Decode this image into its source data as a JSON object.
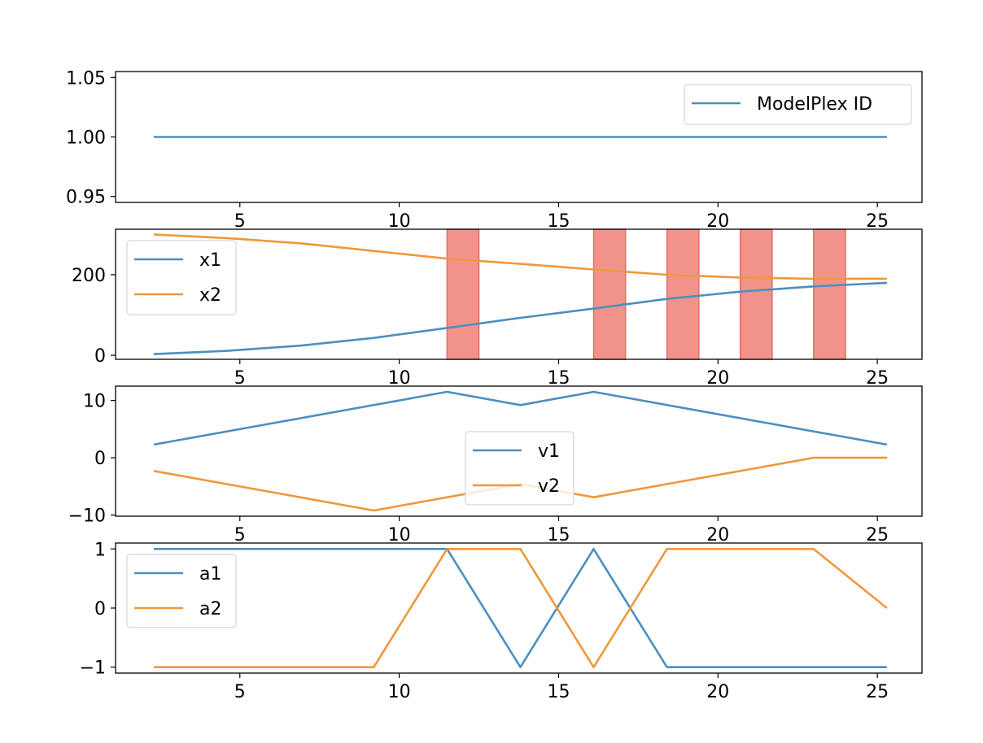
{
  "colors": {
    "series_1": "#4c8fc0",
    "series_2": "#f0973c",
    "highlight_fill": "#f1938b",
    "highlight_edge": "#e46d66",
    "axis": "#000000",
    "background": "#ffffff"
  },
  "chart_data": [
    {
      "type": "line",
      "x_ticks": [
        5,
        10,
        15,
        20,
        25
      ],
      "xlim": [
        1.1,
        26.4
      ],
      "ylim": [
        0.945,
        1.055
      ],
      "y_ticks": [
        0.95,
        1.0,
        1.05
      ],
      "y_tick_labels": [
        "0.95",
        "1.00",
        "1.05"
      ],
      "legend_position": "upper right",
      "series": [
        {
          "name": "ModelPlex ID",
          "color": "series_1",
          "x": [
            2.3,
            25.3
          ],
          "y": [
            1.0,
            1.0
          ]
        }
      ],
      "highlights": []
    },
    {
      "type": "line",
      "x_ticks": [
        5,
        10,
        15,
        20,
        25
      ],
      "xlim": [
        1.1,
        26.4
      ],
      "ylim": [
        -10,
        313
      ],
      "y_ticks": [
        0,
        200
      ],
      "y_tick_labels": [
        "0",
        "200"
      ],
      "legend_position": "upper left",
      "series": [
        {
          "name": "x1",
          "color": "series_1",
          "x": [
            2.3,
            4.6,
            6.9,
            9.2,
            11.5,
            13.8,
            16.1,
            18.4,
            20.7,
            23.0,
            25.3
          ],
          "y": [
            3,
            11,
            24,
            43,
            68,
            93,
            116,
            140,
            158,
            171,
            180
          ]
        },
        {
          "name": "x2",
          "color": "series_2",
          "x": [
            2.3,
            4.6,
            6.9,
            9.2,
            11.5,
            13.8,
            16.1,
            18.4,
            20.7,
            23.0,
            25.3
          ],
          "y": [
            300,
            291,
            278,
            259,
            240,
            227,
            213,
            200,
            193,
            190,
            190
          ]
        }
      ],
      "highlights": [
        [
          11.5,
          12.5
        ],
        [
          16.1,
          17.1
        ],
        [
          18.4,
          19.4
        ],
        [
          20.7,
          21.7
        ],
        [
          23.0,
          24.0
        ]
      ]
    },
    {
      "type": "line",
      "x_ticks": [
        5,
        10,
        15,
        20,
        25
      ],
      "xlim": [
        1.1,
        26.4
      ],
      "ylim": [
        -10.2,
        12.5
      ],
      "y_ticks": [
        -10,
        0,
        10
      ],
      "y_tick_labels": [
        "−10",
        "0",
        "10"
      ],
      "legend_position": "lower center",
      "series": [
        {
          "name": "v1",
          "color": "series_1",
          "x": [
            2.3,
            11.5,
            13.8,
            16.1,
            25.3
          ],
          "y": [
            2.3,
            11.5,
            9.2,
            11.5,
            2.3
          ]
        },
        {
          "name": "v2",
          "color": "series_2",
          "x": [
            2.3,
            9.2,
            13.8,
            16.1,
            23.0,
            25.3
          ],
          "y": [
            -2.3,
            -9.2,
            -4.6,
            -6.9,
            0,
            0
          ]
        }
      ],
      "highlights": []
    },
    {
      "type": "line",
      "x_ticks": [
        5,
        10,
        15,
        20,
        25
      ],
      "xlim": [
        1.1,
        26.4
      ],
      "ylim": [
        -1.1,
        1.1
      ],
      "y_ticks": [
        -1,
        0,
        1
      ],
      "y_tick_labels": [
        "−1",
        "0",
        "1"
      ],
      "legend_position": "upper left",
      "series": [
        {
          "name": "a1",
          "color": "series_1",
          "x": [
            2.3,
            11.5,
            13.8,
            16.1,
            18.4,
            25.3
          ],
          "y": [
            1,
            1,
            -1,
            1,
            -1,
            -1
          ]
        },
        {
          "name": "a2",
          "color": "series_2",
          "x": [
            2.3,
            9.2,
            11.5,
            13.8,
            16.1,
            18.4,
            23.0,
            25.3
          ],
          "y": [
            -1,
            -1,
            1,
            1,
            -1,
            1,
            1,
            0
          ]
        }
      ],
      "highlights": []
    }
  ]
}
